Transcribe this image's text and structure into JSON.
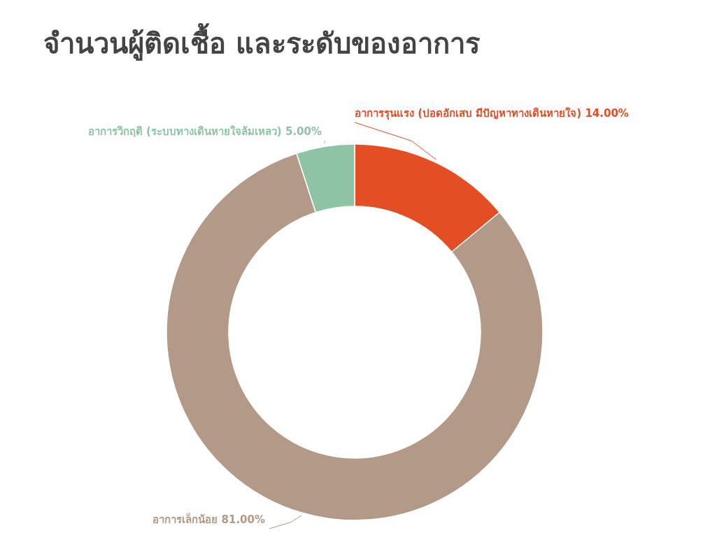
{
  "chart_data": {
    "type": "donut",
    "title": "จำนวนผู้ติดเชื้อ และระดับของอาการ",
    "categories": [
      "อาการรุนแรง (ปอดอักเสบ มีปัญหาทางเดินหายใจ)",
      "อาการเล็กน้อย",
      "อาการวิกฤติ (ระบบทางเดินหายใจล้มเหลว)"
    ],
    "values": [
      14,
      81,
      5
    ],
    "value_labels": [
      "14.00%",
      "81.00%",
      "5.00%"
    ],
    "colors": [
      "#e44e24",
      "#b39987",
      "#8fc3a6"
    ]
  }
}
